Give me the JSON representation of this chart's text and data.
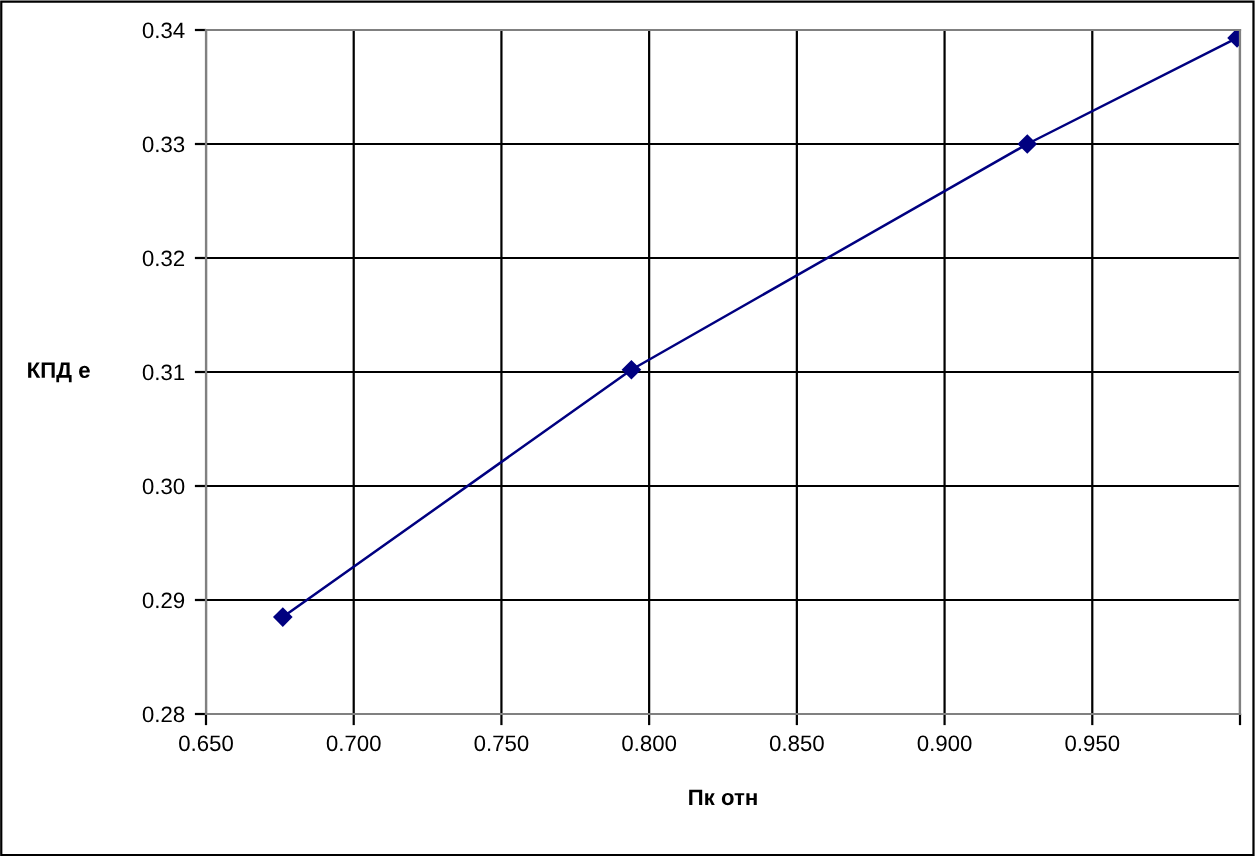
{
  "chart_data": {
    "type": "line",
    "xlabel": "Пк отн",
    "ylabel": "КПД е",
    "x": [
      0.676,
      0.794,
      0.928,
      0.999
    ],
    "series": [
      {
        "color": "#000080",
        "values": [
          0.2885,
          0.3102,
          0.33,
          0.3393
        ]
      }
    ],
    "xlim": [
      0.65,
      1.0
    ],
    "xticks": [
      {
        "value": 0.65,
        "label": "0.650"
      },
      {
        "value": 0.7,
        "label": "0.700"
      },
      {
        "value": 0.75,
        "label": "0.750"
      },
      {
        "value": 0.8,
        "label": "0.800"
      },
      {
        "value": 0.85,
        "label": "0.850"
      },
      {
        "value": 0.9,
        "label": "0.900"
      },
      {
        "value": 0.95,
        "label": "0.950"
      },
      {
        "value": 1.0,
        "label": null
      }
    ],
    "ylim": [
      0.28,
      0.34
    ],
    "yticks": [
      0.28,
      0.29,
      {
        "value": 0.3,
        "label": "0.30"
      },
      0.31,
      0.32,
      0.33,
      0.34
    ],
    "grid": true,
    "marker": "diamond",
    "line_style": "solid",
    "legend": false
  }
}
